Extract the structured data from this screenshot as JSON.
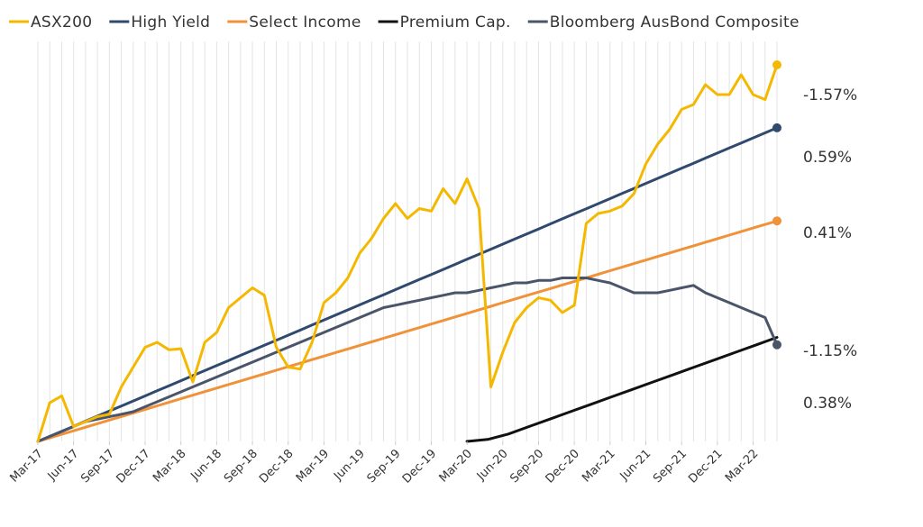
{
  "chart_data": {
    "type": "line",
    "title": "",
    "xlabel": "",
    "ylabel": "",
    "grid": true,
    "legend_position": "top",
    "x_tick_labels": [
      "Mar-17",
      "Jun-17",
      "Sep-17",
      "Dec-17",
      "Mar-18",
      "Jun-18",
      "Sep-18",
      "Dec-18",
      "Mar-19",
      "Jun-19",
      "Sep-19",
      "Dec-19",
      "Mar-20",
      "Jun-20",
      "Sep-20",
      "Dec-20",
      "Mar-21",
      "Jun-21",
      "Sep-21",
      "Dec-21",
      "Mar-22"
    ],
    "series": [
      {
        "name": "ASX200",
        "color": "#f5b800",
        "end_label": "-1.57%",
        "values": [
          0,
          0.078,
          0.092,
          0.03,
          0.04,
          0.05,
          0.055,
          0.11,
          0.15,
          0.19,
          0.2,
          0.185,
          0.187,
          0.12,
          0.2,
          0.22,
          0.27,
          0.29,
          0.31,
          0.295,
          0.19,
          0.15,
          0.146,
          0.2,
          0.28,
          0.3,
          0.33,
          0.38,
          0.41,
          0.45,
          0.48,
          0.45,
          0.47,
          0.465,
          0.51,
          0.48,
          0.53,
          0.47,
          0.11,
          0.18,
          0.24,
          0.27,
          0.29,
          0.285,
          0.26,
          0.275,
          0.44,
          0.46,
          0.465,
          0.475,
          0.5,
          0.56,
          0.6,
          0.63,
          0.67,
          0.68,
          0.72,
          0.7,
          0.7,
          0.74,
          0.7,
          0.69,
          0.76
        ]
      },
      {
        "name": "High Yield",
        "color": "#2f4a6e",
        "end_label": "0.59%",
        "values": [
          0,
          0.633
        ]
      },
      {
        "name": "Select Income",
        "color": "#f0923a",
        "end_label": "0.41%",
        "values": [
          0,
          0.445
        ]
      },
      {
        "name": "Premium Cap.",
        "color": "#111111",
        "end_label": "0.38%",
        "start_index": 36,
        "values": [
          0,
          0.004,
          0.015,
          0.03,
          0.045,
          0.06,
          0.075,
          0.09,
          0.105,
          0.12,
          0.135,
          0.15,
          0.165,
          0.18,
          0.195,
          0.21
        ]
      },
      {
        "name": "Bloomberg AusBond Composite",
        "color": "#4b5569",
        "end_label": "-1.15%",
        "values": [
          0,
          0.01,
          0.02,
          0.03,
          0.04,
          0.045,
          0.05,
          0.055,
          0.06,
          0.07,
          0.08,
          0.09,
          0.1,
          0.11,
          0.12,
          0.13,
          0.14,
          0.15,
          0.16,
          0.17,
          0.18,
          0.19,
          0.2,
          0.21,
          0.22,
          0.23,
          0.24,
          0.25,
          0.26,
          0.27,
          0.275,
          0.28,
          0.285,
          0.29,
          0.295,
          0.3,
          0.3,
          0.305,
          0.31,
          0.315,
          0.32,
          0.32,
          0.325,
          0.325,
          0.33,
          0.33,
          0.33,
          0.325,
          0.32,
          0.31,
          0.3,
          0.3,
          0.3,
          0.305,
          0.31,
          0.315,
          0.3,
          0.29,
          0.28,
          0.27,
          0.26,
          0.25,
          0.195
        ]
      }
    ],
    "legend": [
      "ASX200",
      "High Yield",
      "Select Income",
      "Premium Cap.",
      "Bloomberg AusBond Composite"
    ]
  }
}
